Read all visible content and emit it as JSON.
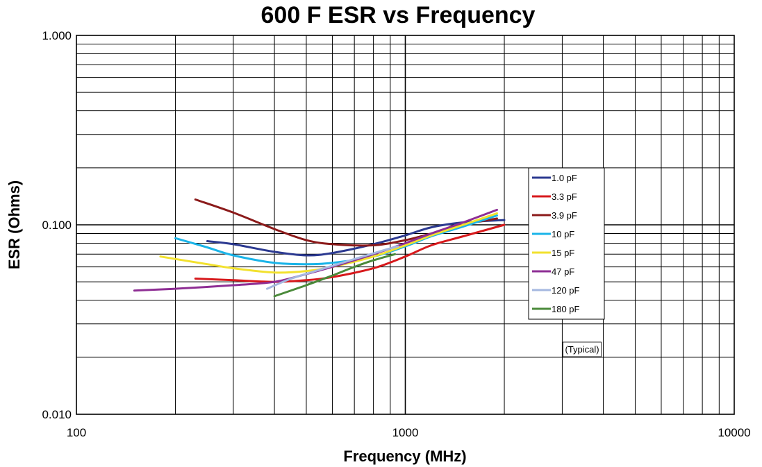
{
  "chart_data": {
    "type": "line",
    "title": "600 F ESR vs Frequency",
    "xlabel": "Frequency (MHz)",
    "ylabel": "ESR (Ohms)",
    "x_scale": "log",
    "y_scale": "log",
    "xlim": [
      100,
      10000
    ],
    "ylim": [
      0.01,
      1.0
    ],
    "x_tick_labels": [
      "100",
      "1000",
      "10000"
    ],
    "y_tick_labels": [
      "0.010",
      "0.100",
      "1.000"
    ],
    "grid": true,
    "legend_position": "right",
    "annotation": "(Typical)",
    "series": [
      {
        "name": "1.0 pF",
        "color": "#2b3990",
        "x": [
          250,
          300,
          400,
          500,
          600,
          800,
          1000,
          1200,
          1500,
          2000
        ],
        "y": [
          0.082,
          0.079,
          0.072,
          0.069,
          0.071,
          0.079,
          0.088,
          0.097,
          0.103,
          0.106
        ]
      },
      {
        "name": "3.3 pF",
        "color": "#d7191c",
        "x": [
          230,
          300,
          400,
          500,
          600,
          800,
          1000,
          1200,
          1500,
          2000
        ],
        "y": [
          0.052,
          0.051,
          0.05,
          0.051,
          0.053,
          0.059,
          0.068,
          0.078,
          0.087,
          0.1
        ]
      },
      {
        "name": "3.9 pF",
        "color": "#8b1a1a",
        "x": [
          230,
          300,
          400,
          500,
          600,
          800,
          1000,
          1200,
          1500,
          1900
        ],
        "y": [
          0.136,
          0.116,
          0.095,
          0.083,
          0.079,
          0.078,
          0.083,
          0.09,
          0.1,
          0.108
        ]
      },
      {
        "name": "10 pF",
        "color": "#1ab4e8",
        "x": [
          200,
          250,
          300,
          400,
          500,
          600,
          800,
          1000,
          1200,
          1500,
          1900
        ],
        "y": [
          0.085,
          0.076,
          0.069,
          0.063,
          0.062,
          0.063,
          0.068,
          0.077,
          0.087,
          0.098,
          0.112
        ]
      },
      {
        "name": "15 pF",
        "color": "#f2e12e",
        "x": [
          180,
          250,
          300,
          400,
          500,
          600,
          800,
          1000,
          1200,
          1500,
          1900
        ],
        "y": [
          0.068,
          0.062,
          0.059,
          0.056,
          0.057,
          0.06,
          0.068,
          0.078,
          0.088,
          0.1,
          0.115
        ]
      },
      {
        "name": "47 pF",
        "color": "#8e2e94",
        "x": [
          150,
          200,
          300,
          400,
          500,
          600,
          800,
          1000,
          1200,
          1500,
          1900
        ],
        "y": [
          0.045,
          0.046,
          0.048,
          0.05,
          0.055,
          0.06,
          0.07,
          0.08,
          0.09,
          0.103,
          0.12
        ]
      },
      {
        "name": "120 pF",
        "color": "#a5b8e0",
        "x": [
          380,
          450,
          550,
          700,
          850,
          950
        ],
        "y": [
          0.046,
          0.052,
          0.058,
          0.066,
          0.073,
          0.077
        ]
      },
      {
        "name": "180 pF",
        "color": "#4a8a3a",
        "x": [
          400,
          500,
          600,
          700,
          800,
          930
        ],
        "y": [
          0.042,
          0.048,
          0.054,
          0.06,
          0.065,
          0.07
        ]
      }
    ]
  }
}
